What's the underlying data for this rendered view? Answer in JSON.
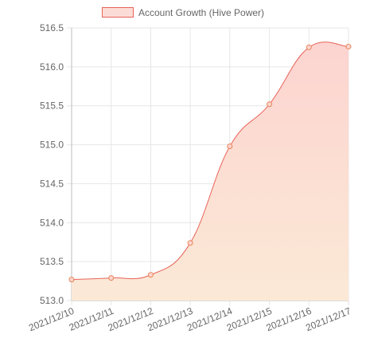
{
  "chart_data": {
    "type": "area",
    "legend_position": "top",
    "series": [
      {
        "name": "Account Growth (Hive Power)",
        "values": [
          513.27,
          513.29,
          513.33,
          513.74,
          514.98,
          515.52,
          516.25,
          516.26
        ]
      }
    ],
    "categories": [
      "2021/12/10",
      "2021/12/11",
      "2021/12/12",
      "2021/12/13",
      "2021/12/14",
      "2021/12/15",
      "2021/12/16",
      "2021/12/17"
    ],
    "y_ticks": [
      "513.0",
      "513.5",
      "514.0",
      "514.5",
      "515.0",
      "515.5",
      "516.0",
      "516.5"
    ],
    "ylim": [
      513.0,
      516.5
    ],
    "grid": true,
    "colors": {
      "line": "#e8645a",
      "point": "#e8875a",
      "fill_top": "#fcd4d0",
      "fill_bottom": "#fbe9d6",
      "grid": "#e6e6e6",
      "axis": "#bdbdbd"
    }
  }
}
